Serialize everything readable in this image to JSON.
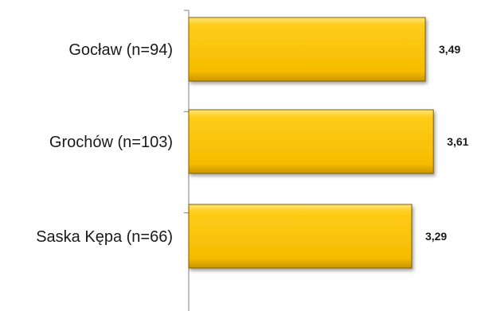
{
  "chart_data": {
    "type": "bar",
    "orientation": "horizontal",
    "categories": [
      "Gocław (n=94)",
      "Grochów (n=103)",
      "Saska Kępa (n=66)"
    ],
    "values": [
      3.49,
      3.61,
      3.29
    ],
    "value_labels": [
      "3,49",
      "3,61",
      "3,29"
    ],
    "bar_color": "#FFC000",
    "bar_edge_color": "#7F6000",
    "axis_color": "#808080",
    "xlim": [
      0,
      4
    ],
    "grid": false,
    "legend": "none"
  }
}
